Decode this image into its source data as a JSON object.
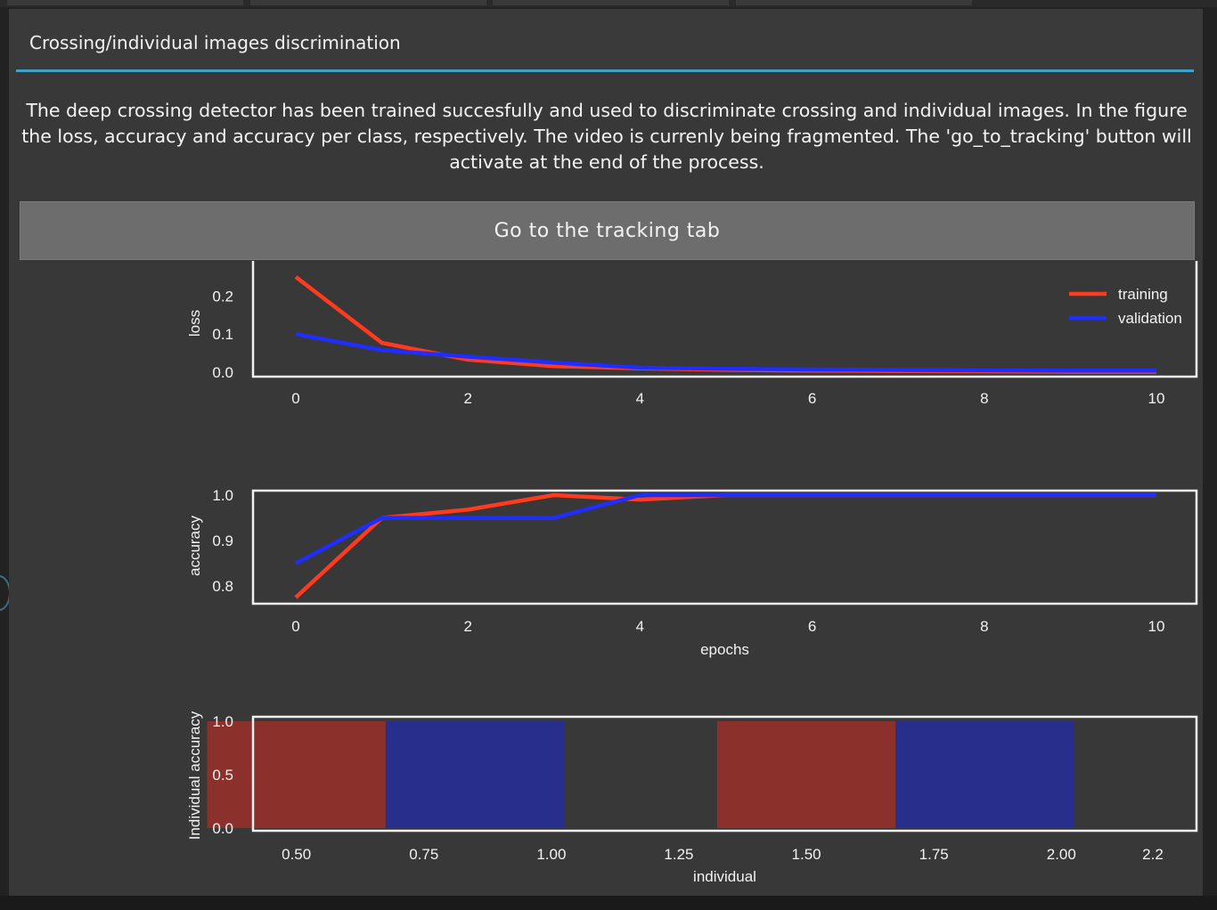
{
  "dialog": {
    "title": "Crossing/individual images discrimination",
    "message": "The deep crossing detector has been trained succesfully and used to discriminate crossing and individual images. In the figure the loss, accuracy and accuracy per class, respectively. The video is currenly being fragmented. The 'go_to_tracking' button will activate at the end of the process.",
    "button_label": "Go to the tracking tab",
    "accent_color": "#3fa2c8"
  },
  "chart_data": [
    {
      "type": "line",
      "ylabel": "loss",
      "xlabel": "",
      "xlim": [
        0,
        10
      ],
      "ylim": [
        0,
        0.25
      ],
      "x": [
        0,
        1,
        2,
        3,
        4,
        5,
        6,
        7,
        8,
        9,
        10
      ],
      "xticks": [
        "0",
        "2",
        "4",
        "6",
        "8",
        "10"
      ],
      "yticks": [
        "0.0",
        "0.1",
        "0.2"
      ],
      "legend_position": "top-right",
      "series": [
        {
          "name": "training",
          "color": "#ff3a1f",
          "values": [
            0.25,
            0.077,
            0.033,
            0.016,
            0.01,
            0.006,
            0.004,
            0.003,
            0.002,
            0.001,
            0.001
          ]
        },
        {
          "name": "validation",
          "color": "#1f2dff",
          "values": [
            0.1,
            0.058,
            0.041,
            0.025,
            0.012,
            0.009,
            0.007,
            0.006,
            0.005,
            0.004,
            0.004
          ]
        }
      ]
    },
    {
      "type": "line",
      "ylabel": "accuracy",
      "xlabel": "epochs",
      "xlim": [
        0,
        10
      ],
      "ylim": [
        0.775,
        1.0
      ],
      "x": [
        0,
        1,
        2,
        3,
        4,
        5,
        6,
        7,
        8,
        9,
        10
      ],
      "xticks": [
        "0",
        "2",
        "4",
        "6",
        "8",
        "10"
      ],
      "yticks": [
        "0.8",
        "0.9",
        "1.0"
      ],
      "series": [
        {
          "name": "training",
          "color": "#ff3a1f",
          "values": [
            0.775,
            0.95,
            0.968,
            1.0,
            0.99,
            1.0,
            1.0,
            1.0,
            1.0,
            1.0,
            1.0
          ]
        },
        {
          "name": "validation",
          "color": "#1f2dff",
          "values": [
            0.85,
            0.95,
            0.95,
            0.95,
            1.0,
            1.0,
            1.0,
            1.0,
            1.0,
            1.0,
            1.0
          ]
        }
      ]
    },
    {
      "type": "bar",
      "ylabel": "Individual accuracy",
      "xlabel": "individual",
      "xlim": [
        0.415,
        2.265
      ],
      "ylim": [
        0,
        1.0
      ],
      "xticks": [
        "0.50",
        "0.75",
        "1.00",
        "1.25",
        "1.50",
        "1.75",
        "2.00",
        "2.2"
      ],
      "yticks": [
        "0.0",
        "0.5",
        "1.0"
      ],
      "bars": [
        {
          "x": 0.5,
          "width": 0.35,
          "value": 1.0,
          "color": "#8b302b"
        },
        {
          "x": 0.85,
          "width": 0.35,
          "value": 1.0,
          "color": "#272e8c"
        },
        {
          "x": 1.5,
          "width": 0.35,
          "value": 1.0,
          "color": "#8b302b"
        },
        {
          "x": 1.85,
          "width": 0.35,
          "value": 1.0,
          "color": "#272e8c"
        }
      ]
    }
  ]
}
